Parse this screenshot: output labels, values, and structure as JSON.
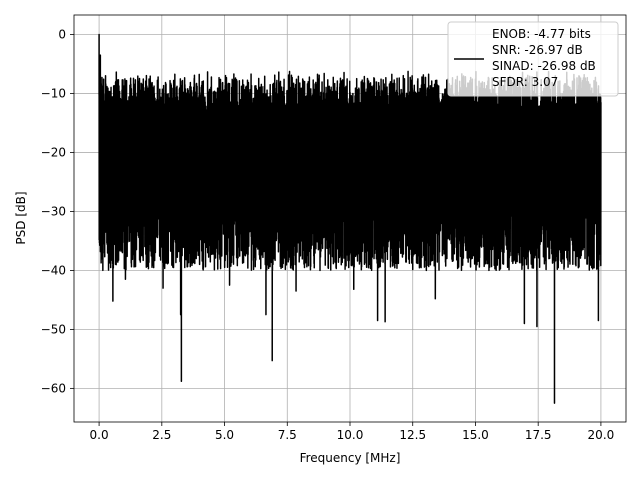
{
  "chart_data": {
    "type": "line",
    "title": "",
    "xlabel": "Frequency [MHz]",
    "ylabel": "PSD [dB]",
    "xlim": [
      -1.0,
      21.0
    ],
    "ylim": [
      -65.7,
      3.3
    ],
    "xticks": [
      0.0,
      2.5,
      5.0,
      7.5,
      10.0,
      12.5,
      15.0,
      17.5,
      20.0
    ],
    "xtick_labels": [
      "0.0",
      "2.5",
      "5.0",
      "7.5",
      "10.0",
      "12.5",
      "15.0",
      "17.5",
      "20.0"
    ],
    "yticks": [
      0,
      -10,
      -20,
      -30,
      -40,
      -50,
      -60
    ],
    "ytick_labels": [
      "0",
      "−10",
      "−20",
      "−30",
      "−40",
      "−50",
      "−60"
    ],
    "grid": true,
    "legend_position": "top-right",
    "legend_entries": [
      "ENOB: -4.77 bits",
      "SNR: -26.97 dB",
      "SINAD: -26.98 dB",
      "SFDR: 3.07"
    ],
    "series": [
      {
        "color": "#000000",
        "description": "dense noise-like power spectral density from 0 to 20 MHz; upper envelope about -7 to -12 dB, lower envelope about -30 to -40 dB",
        "x_range": [
          0.0,
          20.0
        ],
        "y_upper_envelope": [
          -6,
          -12
        ],
        "y_lower_envelope": [
          -30,
          -40
        ],
        "peaks": [
          {
            "x": 0.0,
            "y": 0.0
          },
          {
            "x": 0.05,
            "y": -3.5
          }
        ],
        "dips": [
          {
            "x": 0.07,
            "y": -26
          },
          {
            "x": 0.15,
            "y": -40
          },
          {
            "x": 0.55,
            "y": -45.2
          },
          {
            "x": 1.05,
            "y": -41.5
          },
          {
            "x": 2.55,
            "y": -43
          },
          {
            "x": 3.25,
            "y": -47.5
          },
          {
            "x": 3.28,
            "y": -58.8
          },
          {
            "x": 5.2,
            "y": -42.5
          },
          {
            "x": 6.65,
            "y": -47.5
          },
          {
            "x": 6.9,
            "y": -55.3
          },
          {
            "x": 7.85,
            "y": -43.5
          },
          {
            "x": 10.15,
            "y": -43.2
          },
          {
            "x": 11.1,
            "y": -48.5
          },
          {
            "x": 11.4,
            "y": -48.7
          },
          {
            "x": 13.4,
            "y": -44.8
          },
          {
            "x": 16.95,
            "y": -49
          },
          {
            "x": 17.45,
            "y": -49.5
          },
          {
            "x": 18.15,
            "y": -62.5
          },
          {
            "x": 19.9,
            "y": -48.5
          }
        ]
      }
    ]
  }
}
